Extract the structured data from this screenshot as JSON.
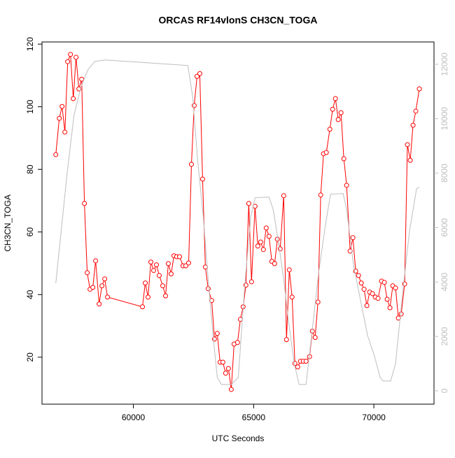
{
  "chart_data": {
    "type": "line",
    "title": "ORCAS RF14vlonS CH3CN_TOGA",
    "x_label": "UTC Seconds",
    "y_label": "CH3CN_TOGA",
    "xlim": [
      56200,
      72500
    ],
    "ylim": [
      5.0,
      120.7
    ],
    "y2lim": [
      -490,
      12820
    ],
    "xticks": [
      60000,
      65000,
      70000
    ],
    "yticks": [
      20,
      40,
      60,
      80,
      100,
      120
    ],
    "y2ticks": [
      0,
      2000,
      4000,
      6000,
      8000,
      10000,
      12000
    ],
    "series": [
      {
        "color": "#ff0000",
        "markers": true,
        "x": [
          56773,
          56919,
          57035,
          57151,
          57267,
          57384,
          57500,
          57616,
          57733,
          57849,
          57965,
          58081,
          58198,
          58314,
          58430,
          58576,
          58692,
          58808,
          58924,
          60378,
          60494,
          60610,
          60727,
          60843,
          60959,
          61076,
          61221,
          61337,
          61453,
          61570,
          61686,
          61802,
          61919,
          62064,
          62180,
          62297,
          62413,
          62529,
          62646,
          62762,
          62878,
          62994,
          63111,
          63256,
          63372,
          63488,
          63605,
          63721,
          63837,
          63953,
          64070,
          64186,
          64331,
          64448,
          64564,
          64680,
          64797,
          64913,
          65058,
          65174,
          65291,
          65407,
          65523,
          65640,
          65756,
          65872,
          65988,
          66105,
          66250,
          66366,
          66483,
          66599,
          66715,
          66831,
          66948,
          67064,
          67180,
          67326,
          67442,
          67558,
          67674,
          67791,
          67907,
          68023,
          68169,
          68285,
          68401,
          68518,
          68634,
          68750,
          68866,
          69012,
          69128,
          69244,
          69361,
          69477,
          69593,
          69709,
          69826,
          69942,
          70058,
          70174,
          70320,
          70436,
          70552,
          70669,
          70785,
          70901,
          71017,
          71134,
          71279,
          71395,
          71512,
          71628,
          71744,
          71890
        ],
        "values": [
          84.7,
          96.3,
          100.1,
          91.9,
          114.4,
          116.7,
          102.6,
          115.8,
          105.7,
          108.8,
          69.1,
          47.0,
          41.7,
          42.3,
          50.8,
          37.0,
          42.8,
          45.0,
          39.2,
          36.1,
          43.7,
          39.2,
          50.4,
          47.7,
          49.5,
          46.1,
          42.8,
          39.6,
          49.9,
          46.6,
          52.4,
          52.1,
          52.1,
          49.2,
          49.2,
          50.1,
          81.6,
          100.4,
          109.7,
          110.6,
          76.9,
          48.8,
          41.9,
          38.1,
          25.8,
          27.6,
          18.4,
          18.4,
          14.9,
          16.4,
          9.7,
          24.2,
          24.7,
          32.1,
          36.1,
          43.0,
          69.1,
          44.1,
          68.2,
          55.5,
          56.8,
          54.4,
          61.3,
          58.6,
          50.6,
          49.9,
          57.7,
          54.6,
          71.6,
          25.6,
          47.9,
          39.2,
          18.0,
          16.9,
          18.7,
          18.7,
          18.7,
          20.2,
          28.3,
          26.3,
          37.6,
          71.8,
          85.0,
          85.4,
          92.8,
          99.2,
          102.6,
          95.9,
          98.1,
          83.4,
          74.9,
          53.9,
          58.2,
          47.5,
          46.1,
          43.7,
          41.7,
          36.5,
          40.8,
          40.3,
          39.2,
          38.8,
          44.3,
          43.9,
          38.5,
          35.8,
          42.8,
          42.1,
          32.5,
          33.8,
          43.4,
          87.9,
          82.9,
          94.1,
          98.6,
          105.7
        ]
      },
      {
        "color": "#bebebe",
        "axis": "y2",
        "markers": false,
        "x": [
          56773,
          57238,
          57529,
          57820,
          58110,
          58401,
          58837,
          62267,
          62471,
          62674,
          62907,
          63110,
          63314,
          63488,
          63663,
          64070,
          64361,
          64651,
          64884,
          65058,
          65640,
          65814,
          66047,
          66250,
          66454,
          66686,
          66890,
          67180,
          67413,
          67704,
          67995,
          68198,
          68721,
          68866,
          69157,
          69448,
          69738,
          70029,
          70262,
          70378,
          70698,
          70901,
          71192,
          71483,
          71774,
          71890
        ],
        "values": [
          3959,
          7943,
          10129,
          11157,
          11799,
          12108,
          12159,
          11954,
          10771,
          8458,
          6401,
          4087,
          2031,
          488,
          231,
          231,
          488,
          4087,
          6401,
          7095,
          7121,
          6658,
          5373,
          4087,
          2545,
          1003,
          231,
          231,
          2031,
          4344,
          6144,
          7224,
          7250,
          6658,
          4602,
          3316,
          2031,
          1260,
          488,
          360,
          360,
          1003,
          3573,
          5887,
          7430,
          7481
        ]
      }
    ]
  }
}
